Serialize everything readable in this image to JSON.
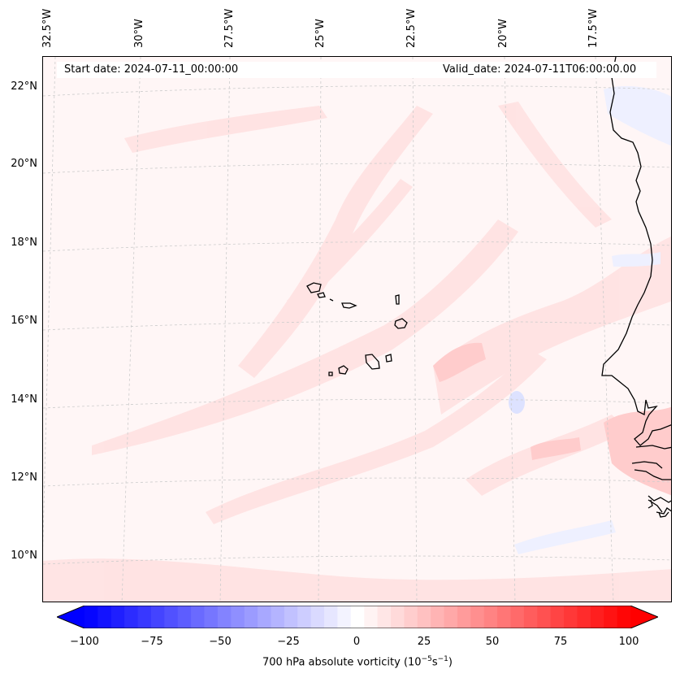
{
  "header": {
    "start_date": "Start date: 2024-07-11_00:00:00",
    "valid_date": "Valid_date: 2024-07-11T06:00:00.00"
  },
  "axes": {
    "lon_labels": [
      "32.5°W",
      "30°W",
      "27.5°W",
      "25°W",
      "22.5°W",
      "20°W",
      "17.5°W"
    ],
    "lat_labels": [
      "22°N",
      "20°N",
      "18°N",
      "16°N",
      "14°N",
      "12°N",
      "10°N"
    ]
  },
  "colorbar": {
    "ticks": [
      "−100",
      "−75",
      "−50",
      "−25",
      "0",
      "25",
      "50",
      "75",
      "100"
    ],
    "caption_prefix": "700 hPa absolute vorticity (10",
    "caption_exp1": "−5",
    "caption_mid": "s",
    "caption_exp2": "−1",
    "caption_suffix": ")",
    "min_color": "#0000ff",
    "mid_color": "#ffffff",
    "max_color": "#ff0000",
    "levels": 41
  },
  "field": {
    "background_color": "#fff6f6",
    "positive_band_color": "#ffe3e3",
    "strong_positive_color": "#ffcccc",
    "negative_color": "#eef0ff",
    "coastline_color": "#000000",
    "gridline_color": "#cccccc"
  }
}
